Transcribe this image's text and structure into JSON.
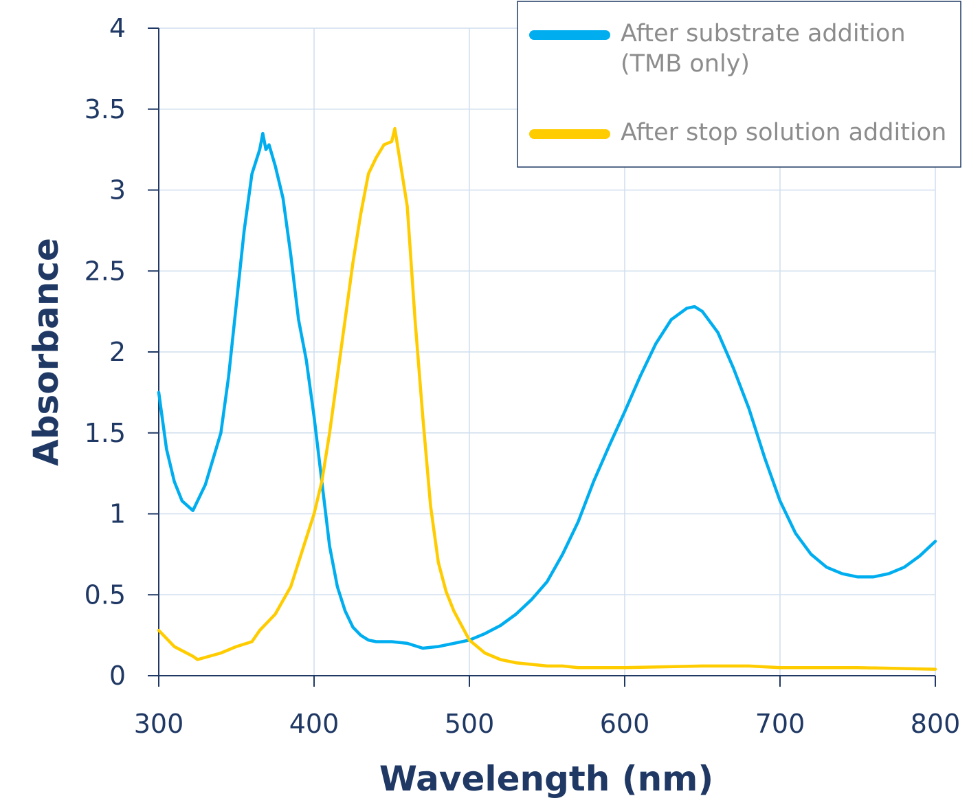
{
  "chart_data": {
    "type": "line",
    "xlabel": "Wavelength (nm)",
    "ylabel": "Absorbance",
    "xlim": [
      300,
      800
    ],
    "ylim": [
      0,
      4
    ],
    "xticks": [
      300,
      400,
      500,
      600,
      700,
      800
    ],
    "yticks": [
      0,
      0.5,
      1,
      1.5,
      2,
      2.5,
      3,
      3.5,
      4
    ],
    "ytick_labels": [
      "0",
      "0.5",
      "1",
      "1.5",
      "2",
      "2.5",
      "3",
      "3.5",
      "4"
    ],
    "grid": true,
    "legend_position": "top-right",
    "series": [
      {
        "name": "After substrate addition (TMB only)",
        "legend_lines": [
          "After substrate addition",
          "(TMB only)"
        ],
        "color": "#00aeef",
        "x": [
          300,
          305,
          310,
          315,
          322,
          330,
          340,
          345,
          350,
          355,
          360,
          365,
          367,
          369,
          371,
          375,
          380,
          385,
          390,
          395,
          400,
          405,
          410,
          415,
          420,
          425,
          430,
          435,
          440,
          450,
          460,
          470,
          480,
          490,
          500,
          510,
          520,
          530,
          540,
          550,
          560,
          570,
          580,
          590,
          600,
          610,
          620,
          630,
          640,
          645,
          650,
          660,
          670,
          680,
          690,
          700,
          710,
          720,
          730,
          740,
          750,
          760,
          770,
          780,
          790,
          800
        ],
        "y": [
          1.75,
          1.4,
          1.2,
          1.08,
          1.02,
          1.18,
          1.5,
          1.85,
          2.3,
          2.75,
          3.1,
          3.25,
          3.35,
          3.25,
          3.28,
          3.15,
          2.95,
          2.6,
          2.2,
          1.95,
          1.6,
          1.2,
          0.8,
          0.55,
          0.4,
          0.3,
          0.25,
          0.22,
          0.21,
          0.21,
          0.2,
          0.17,
          0.18,
          0.2,
          0.22,
          0.26,
          0.31,
          0.38,
          0.47,
          0.58,
          0.75,
          0.95,
          1.2,
          1.42,
          1.63,
          1.85,
          2.05,
          2.2,
          2.27,
          2.28,
          2.25,
          2.12,
          1.9,
          1.65,
          1.35,
          1.08,
          0.88,
          0.75,
          0.67,
          0.63,
          0.61,
          0.61,
          0.63,
          0.67,
          0.74,
          0.83
        ]
      },
      {
        "name": "After stop solution addition",
        "legend_lines": [
          "After stop solution addition"
        ],
        "color": "#ffcc00",
        "x": [
          300,
          310,
          322,
          325,
          340,
          350,
          360,
          365,
          375,
          385,
          395,
          400,
          405,
          410,
          415,
          420,
          425,
          430,
          435,
          440,
          445,
          450,
          452,
          455,
          460,
          465,
          470,
          475,
          480,
          485,
          490,
          500,
          510,
          520,
          530,
          540,
          550,
          560,
          570,
          600,
          650,
          680,
          700,
          750,
          800
        ],
        "y": [
          0.28,
          0.18,
          0.12,
          0.1,
          0.14,
          0.18,
          0.21,
          0.28,
          0.38,
          0.55,
          0.85,
          1.0,
          1.2,
          1.5,
          1.85,
          2.2,
          2.55,
          2.85,
          3.1,
          3.2,
          3.28,
          3.3,
          3.38,
          3.2,
          2.9,
          2.2,
          1.6,
          1.05,
          0.7,
          0.52,
          0.4,
          0.22,
          0.14,
          0.1,
          0.08,
          0.07,
          0.06,
          0.06,
          0.05,
          0.05,
          0.06,
          0.06,
          0.05,
          0.05,
          0.04
        ]
      }
    ]
  }
}
